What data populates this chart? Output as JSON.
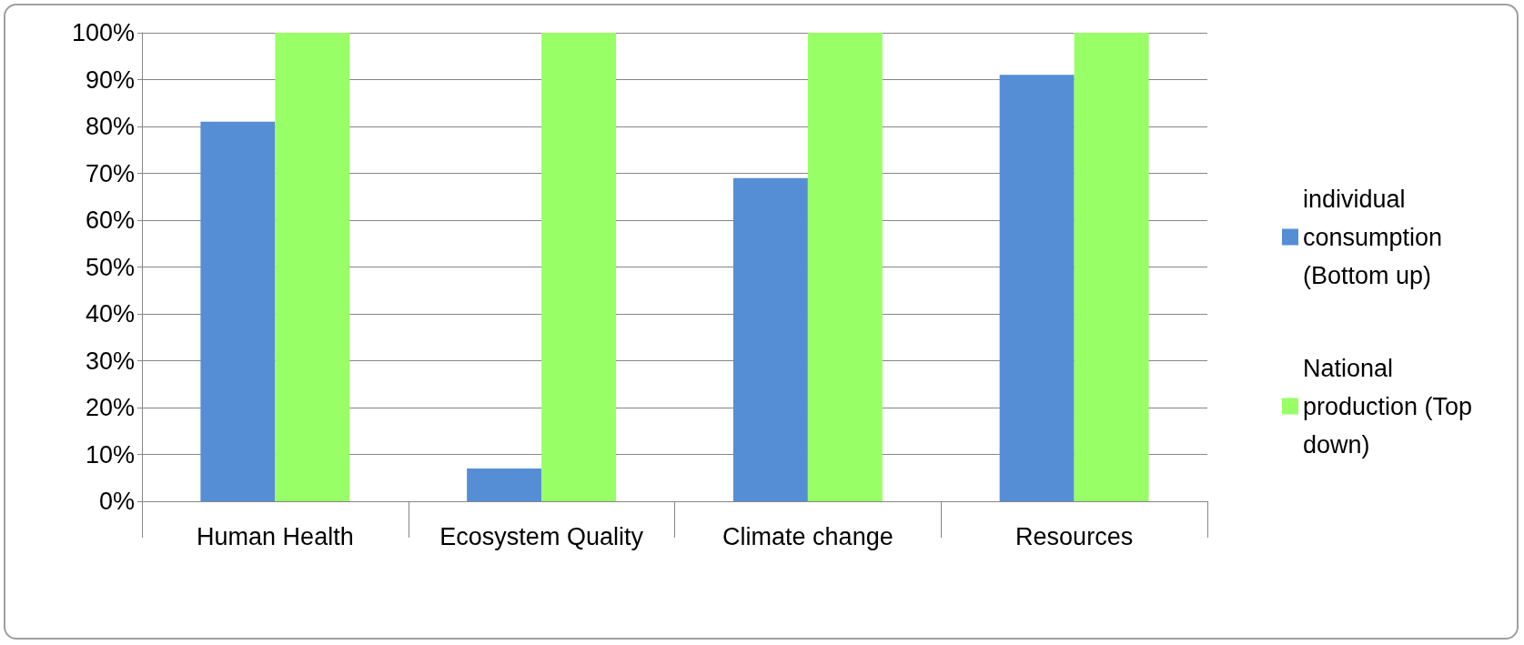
{
  "chart_data": {
    "type": "bar",
    "categories": [
      "Human Health",
      "Ecosystem Quality",
      "Climate change",
      "Resources"
    ],
    "series": [
      {
        "name": "individual consumption (Bottom up)",
        "color": "#558ed5",
        "values": [
          81,
          7,
          69,
          91
        ]
      },
      {
        "name": "National production (Top down)",
        "color": "#99ff66",
        "values": [
          100,
          100,
          100,
          100
        ]
      }
    ],
    "ylim": [
      0,
      100
    ],
    "yticks": [
      {
        "value": 0,
        "label": "0%"
      },
      {
        "value": 10,
        "label": "10%"
      },
      {
        "value": 20,
        "label": "20%"
      },
      {
        "value": 30,
        "label": "30%"
      },
      {
        "value": 40,
        "label": "40%"
      },
      {
        "value": 50,
        "label": "50%"
      },
      {
        "value": 60,
        "label": "60%"
      },
      {
        "value": 70,
        "label": "70%"
      },
      {
        "value": 80,
        "label": "80%"
      },
      {
        "value": 90,
        "label": "90%"
      },
      {
        "value": 100,
        "label": "100%"
      }
    ],
    "grid": "y",
    "legend": "right"
  }
}
